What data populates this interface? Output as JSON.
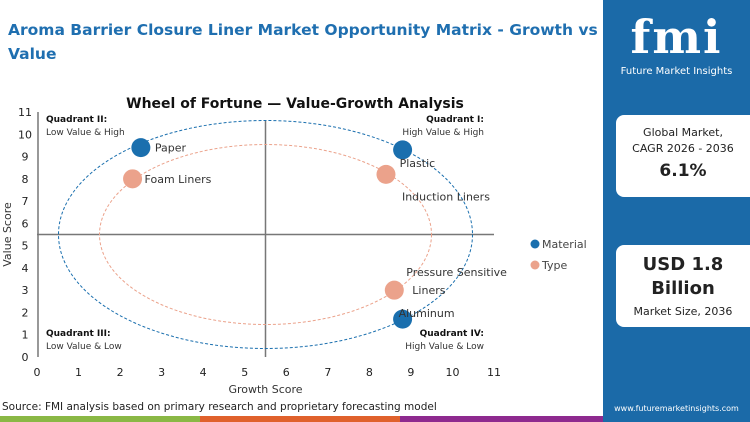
{
  "title": "Aroma Barrier Closure Liner Market  Opportunity Matrix - Growth vs Value",
  "source": "Source: FMI analysis based on primary research and proprietary forecasting model",
  "panel": {
    "logo_text": "fmi",
    "logo_sub": "Future Market Insights",
    "cagr_label1": "Global Market,",
    "cagr_label2": "CAGR 2026 - 2036",
    "cagr_value": "6.1%",
    "size_value1": "USD 1.8",
    "size_value2": "Billion",
    "size_label": "Market Size, 2036",
    "url": "www.futuremarketinsights.com"
  },
  "colors": {
    "brand": "#1b6aa8",
    "material": "#1a6fae",
    "type": "#eba28b",
    "strip": [
      "#8ab845",
      "#e0612c",
      "#8e2a8f"
    ]
  },
  "chart_data": {
    "type": "scatter",
    "title": "Wheel of Fortune — Value-Growth  Analysis",
    "xlabel": "Growth Score",
    "ylabel": "Value Score",
    "xlim": [
      0,
      11
    ],
    "ylim": [
      0,
      11
    ],
    "xticks": [
      "0",
      "1",
      "2",
      "3",
      "4",
      "5",
      "6",
      "7",
      "8",
      "9",
      "10",
      "11"
    ],
    "yticks": [
      "0",
      "1",
      "2",
      "3",
      "4",
      "5",
      "6",
      "7",
      "8",
      "9",
      "10",
      "11"
    ],
    "legend": {
      "placement": "right",
      "entries": [
        "Material",
        "Type"
      ]
    },
    "quadrants": [
      {
        "title": "Quadrant II:",
        "desc": "Low Value & High"
      },
      {
        "title": "Quadrant I:",
        "desc": "High Value & High"
      },
      {
        "title": "Quadrant III:",
        "desc": "Low Value & Low"
      },
      {
        "title": "Quadrant IV:",
        "desc": "High Value & Low"
      }
    ],
    "points": [
      {
        "label": "Paper",
        "series": "Material",
        "x": 2.5,
        "y": 9.4
      },
      {
        "label": "Foam Liners",
        "series": "Type",
        "x": 2.3,
        "y": 8.0
      },
      {
        "label": "Plastic",
        "series": "Material",
        "x": 8.8,
        "y": 9.3
      },
      {
        "label": "Induction Liners",
        "series": "Type",
        "x": 8.4,
        "y": 8.2
      },
      {
        "label": "Pressure Sensitive Liners",
        "series": "Type",
        "x": 8.6,
        "y": 3.0
      },
      {
        "label": "Aluminum",
        "series": "Material",
        "x": 8.8,
        "y": 1.7
      }
    ]
  }
}
